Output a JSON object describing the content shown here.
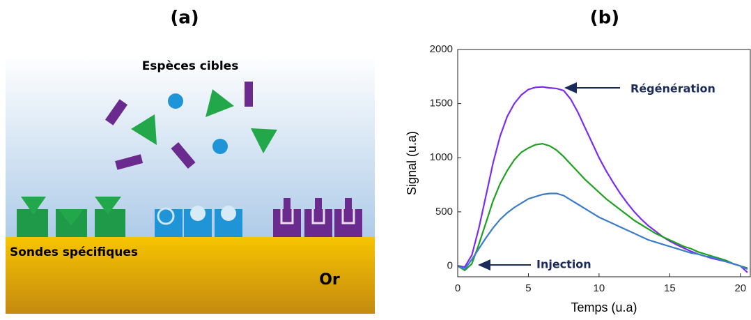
{
  "diagram": {
    "panel_label": "(a)",
    "targets_label": "Espèces cibles",
    "probes_label": "Sondes spécifiques",
    "surface_label": "Or"
  },
  "chart_data": {
    "type": "line",
    "panel_label": "(b)",
    "x_label": "Temps (u.a)",
    "y_label": "Signal (u.a)",
    "xlim": [
      0,
      20.7
    ],
    "ylim": [
      -100,
      2000
    ],
    "xticks": [
      0,
      5,
      10,
      15,
      20
    ],
    "yticks": [
      0,
      500,
      1000,
      1500,
      2000
    ],
    "x": [
      0,
      0.5,
      1,
      1.5,
      2,
      2.5,
      3,
      3.5,
      4,
      4.5,
      5,
      5.5,
      6,
      6.5,
      7,
      7.5,
      8,
      8.5,
      9,
      9.5,
      10,
      10.5,
      11,
      11.5,
      12,
      12.5,
      13,
      13.5,
      14,
      14.5,
      15,
      15.5,
      16,
      16.5,
      17,
      17.5,
      18,
      18.5,
      19,
      19.5,
      20,
      20.5
    ],
    "series": [
      {
        "color": "#7b2cf0",
        "values": [
          0,
          -10,
          100,
          350,
          650,
          950,
          1200,
          1380,
          1500,
          1580,
          1630,
          1650,
          1655,
          1645,
          1640,
          1620,
          1540,
          1420,
          1280,
          1140,
          1000,
          880,
          770,
          670,
          580,
          500,
          430,
          370,
          320,
          270,
          230,
          195,
          165,
          135,
          110,
          90,
          70,
          55,
          40,
          20,
          0,
          -60
        ]
      },
      {
        "color": "#1fa11f",
        "values": [
          0,
          -40,
          20,
          200,
          400,
          600,
          760,
          880,
          980,
          1050,
          1090,
          1120,
          1130,
          1110,
          1070,
          1010,
          940,
          870,
          800,
          740,
          680,
          620,
          570,
          520,
          470,
          420,
          380,
          340,
          300,
          270,
          240,
          210,
          180,
          160,
          130,
          110,
          90,
          70,
          50,
          20,
          0,
          -20
        ]
      },
      {
        "color": "#3a7cc8",
        "values": [
          0,
          -30,
          60,
          160,
          260,
          350,
          430,
          490,
          540,
          580,
          620,
          640,
          660,
          670,
          670,
          650,
          610,
          570,
          530,
          490,
          450,
          420,
          390,
          360,
          330,
          300,
          270,
          240,
          220,
          200,
          180,
          160,
          140,
          120,
          110,
          90,
          80,
          60,
          40,
          20,
          0,
          -30
        ]
      }
    ],
    "annotations": [
      "Régénération",
      "Injection"
    ]
  }
}
